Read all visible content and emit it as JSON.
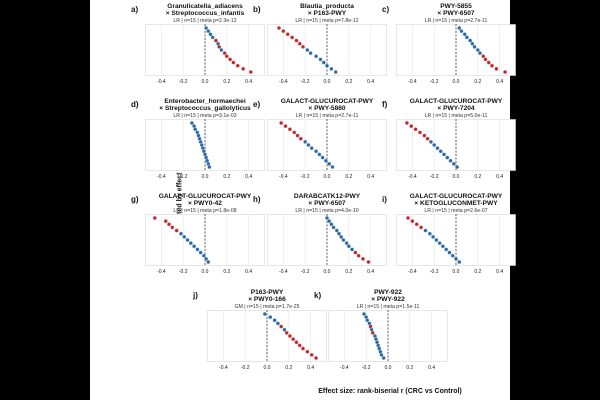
{
  "chart_data": {
    "type": "scatter",
    "ylabel": "Cohort (sorted by effect size)",
    "xlabel": "Effect size: rank-biserial r (CRC vs Control)",
    "xlim": [
      -0.55,
      0.55
    ],
    "xticks": [
      "-0.4",
      "-0.2",
      "0.0",
      "0.2",
      "0.4"
    ],
    "significant_color": "#c0282d",
    "nonsignificant_color": "#2b6aa3",
    "reference_line_x": 0.0,
    "panels": [
      {
        "letter": "a)",
        "title1": "Granulicatella_adiacens",
        "title2": "× Streptococcus_infantis",
        "stats": "LR | n=15 | meta p=2.3e-12",
        "values": [
          0.01,
          0.03,
          0.05,
          0.07,
          0.1,
          0.12,
          0.13,
          0.15,
          0.18,
          0.2,
          0.23,
          0.26,
          0.3,
          0.35,
          0.42
        ],
        "significant": [
          false,
          false,
          false,
          false,
          true,
          false,
          true,
          false,
          true,
          true,
          true,
          true,
          true,
          true,
          true
        ]
      },
      {
        "letter": "b)",
        "title1": "Blautia_producta",
        "title2": "× P163-PWY",
        "stats": "LR | n=15 | meta p=7.8e-12",
        "values": [
          -0.44,
          -0.4,
          -0.36,
          -0.32,
          -0.28,
          -0.25,
          -0.22,
          -0.18,
          -0.15,
          -0.1,
          -0.06,
          -0.03,
          0.0,
          0.04,
          0.08
        ],
        "significant": [
          true,
          true,
          true,
          true,
          true,
          true,
          true,
          false,
          false,
          false,
          false,
          false,
          false,
          false,
          false
        ]
      },
      {
        "letter": "c)",
        "title1": "PWY-5855",
        "title2": "× PWY-6507",
        "stats": "LR | n=15 | meta p=2.7e-11",
        "values": [
          0.03,
          0.05,
          0.08,
          0.1,
          0.13,
          0.15,
          0.17,
          0.2,
          0.22,
          0.25,
          0.27,
          0.3,
          0.33,
          0.37,
          0.45
        ],
        "significant": [
          false,
          false,
          false,
          false,
          false,
          false,
          false,
          false,
          false,
          true,
          true,
          true,
          true,
          true,
          true
        ]
      },
      {
        "letter": "d)",
        "title1": "Enterobacter_hormaechei",
        "title2": "× Streptococcus_gallolyticus",
        "stats": "LR | n=15 | meta p=3.1e-03",
        "values": [
          -0.12,
          -0.1,
          -0.09,
          -0.07,
          -0.06,
          -0.05,
          -0.04,
          -0.03,
          -0.02,
          -0.01,
          0.0,
          0.01,
          0.02,
          0.03,
          0.04
        ],
        "significant": [
          false,
          false,
          false,
          false,
          false,
          false,
          false,
          false,
          false,
          false,
          false,
          false,
          false,
          false,
          false
        ]
      },
      {
        "letter": "e)",
        "title1": "GALACT-GLUCUROCAT-PWY",
        "title2": "× PWY-5860",
        "stats": "LR | n=15 | meta p=2.7e-11",
        "values": [
          -0.42,
          -0.38,
          -0.34,
          -0.3,
          -0.27,
          -0.24,
          -0.2,
          -0.17,
          -0.14,
          -0.1,
          -0.07,
          -0.04,
          -0.01,
          0.02,
          0.05
        ],
        "significant": [
          true,
          true,
          true,
          true,
          true,
          true,
          false,
          false,
          false,
          false,
          false,
          false,
          false,
          false,
          false
        ]
      },
      {
        "letter": "f)",
        "title1": "GALACT-GLUCUROCAT-PWY",
        "title2": "× PWY-7204",
        "stats": "LR | n=15 | meta p=5.0e-11",
        "values": [
          -0.45,
          -0.41,
          -0.37,
          -0.33,
          -0.29,
          -0.26,
          -0.23,
          -0.2,
          -0.17,
          -0.14,
          -0.11,
          -0.08,
          -0.05,
          -0.02,
          0.01
        ],
        "significant": [
          true,
          true,
          true,
          true,
          true,
          true,
          false,
          false,
          false,
          false,
          false,
          false,
          false,
          false,
          false
        ]
      },
      {
        "letter": "g)",
        "title1": "GALACT-GLUCUROCAT-PWY",
        "title2": "× PWY0-42",
        "stats": "LR | n=15 | meta p=1.8e-08",
        "values": [
          -0.46,
          -0.36,
          -0.33,
          -0.3,
          -0.26,
          -0.22,
          -0.19,
          -0.16,
          -0.13,
          -0.1,
          -0.07,
          -0.04,
          -0.01,
          0.01,
          0.03
        ],
        "significant": [
          true,
          true,
          true,
          true,
          true,
          false,
          false,
          false,
          false,
          false,
          false,
          false,
          false,
          false,
          false
        ]
      },
      {
        "letter": "h)",
        "title1": "DARABCATK12-PWY",
        "title2": "× PWY-6507",
        "stats": "LR | n=15 | meta p=4.0e-10",
        "values": [
          0.0,
          0.02,
          0.04,
          0.06,
          0.09,
          0.11,
          0.13,
          0.15,
          0.18,
          0.2,
          0.23,
          0.26,
          0.29,
          0.33,
          0.38
        ],
        "significant": [
          false,
          false,
          false,
          false,
          false,
          false,
          false,
          false,
          false,
          false,
          false,
          true,
          true,
          true,
          true
        ]
      },
      {
        "letter": "i)",
        "title1": "GALACT-GLUCUROCAT-PWY",
        "title2": "× KETOGLUCONMET-PWY",
        "stats": "LR | n=15 | meta p=2.6e-07",
        "values": [
          -0.44,
          -0.4,
          -0.36,
          -0.32,
          -0.28,
          -0.24,
          -0.21,
          -0.18,
          -0.15,
          -0.12,
          -0.09,
          -0.06,
          -0.03,
          0.0,
          0.03
        ],
        "significant": [
          true,
          true,
          true,
          true,
          false,
          false,
          false,
          false,
          false,
          false,
          false,
          false,
          false,
          false,
          false
        ]
      },
      {
        "letter": "j)",
        "title1": "P163-PWY",
        "title2": "× PWY0-166",
        "stats": "GM | n=15 | meta p=1.7e-25",
        "values": [
          -0.02,
          0.03,
          0.07,
          0.1,
          0.13,
          0.16,
          0.18,
          0.21,
          0.24,
          0.27,
          0.3,
          0.33,
          0.37,
          0.41,
          0.45
        ],
        "significant": [
          false,
          false,
          false,
          false,
          true,
          false,
          true,
          true,
          true,
          true,
          true,
          true,
          true,
          true,
          true
        ]
      },
      {
        "letter": "k)",
        "title1": "PWY-922",
        "title2": "× PWY-922",
        "stats": "LR | n=15 | meta p=1.5e-11",
        "values": [
          -0.22,
          -0.2,
          -0.19,
          -0.17,
          -0.16,
          -0.15,
          -0.14,
          -0.12,
          -0.11,
          -0.1,
          -0.09,
          -0.08,
          -0.07,
          -0.06,
          -0.04
        ],
        "significant": [
          false,
          false,
          false,
          false,
          true,
          false,
          true,
          false,
          false,
          false,
          false,
          false,
          false,
          false,
          false
        ]
      }
    ]
  }
}
